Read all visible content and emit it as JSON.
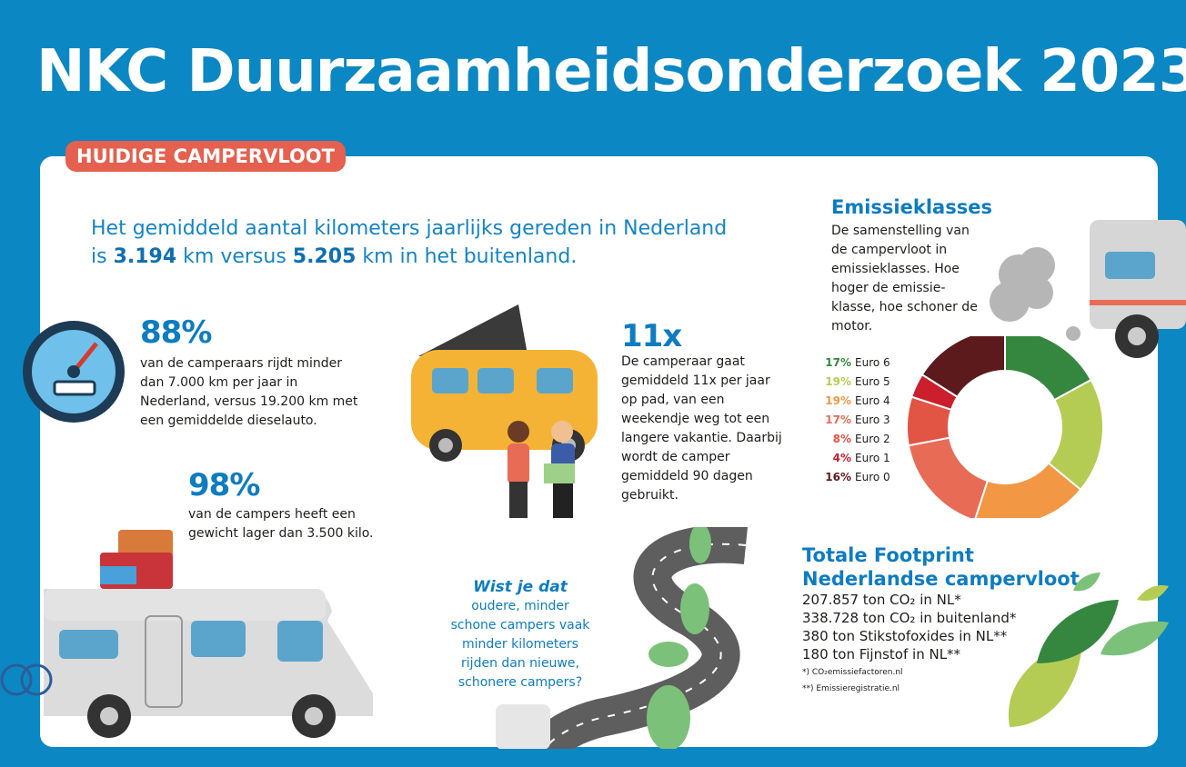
{
  "title": "NKC Duurzaamheidsonderzoek 2023",
  "section_tab": "HUIDIGE CAMPERVLOOT",
  "intro": {
    "part1": "Het gemiddeld aantal kilometers jaarlijks gereden in Nederland is ",
    "nl_km": "3.194",
    "part2": " km versus ",
    "abroad_km": "5.205",
    "part3": " km in het buitenland."
  },
  "stat1": {
    "value": "88%",
    "text": "van de camperaars rijdt minder dan 7.000 km per jaar in Nederland, versus 19.200 km met een gemiddelde dieselauto."
  },
  "stat2": {
    "value": "98%",
    "text": "van de campers heeft een gewicht lager dan 3.500 kilo."
  },
  "stat3": {
    "value": "11x",
    "text": "De camperaar gaat gemiddeld 11x per jaar op pad, van een weekendje weg tot een langere vakantie. Daarbij wordt de camper gemiddeld 90 dagen gebruikt."
  },
  "wist": {
    "heading": "Wist je dat",
    "text": "oudere, minder schone campers vaak minder kilometers rijden dan nieuwe, schonere campers?"
  },
  "emissions": {
    "title": "Emissieklasses",
    "description": "De samenstelling van de campervloot in emissieklasses. Hoe hoger de emissie-klasse, hoe schoner de motor."
  },
  "chart_data": {
    "type": "pie",
    "donut": true,
    "categories": [
      "Euro 6",
      "Euro 5",
      "Euro 4",
      "Euro 3",
      "Euro 2",
      "Euro 1",
      "Euro 0"
    ],
    "values": [
      17,
      19,
      19,
      17,
      8,
      4,
      16
    ],
    "labels": [
      "17%",
      "19%",
      "19%",
      "17%",
      "8%",
      "4%",
      "16%"
    ],
    "colors": [
      "#35873f",
      "#b5cc54",
      "#f29744",
      "#e86b56",
      "#e25444",
      "#cc1f2d",
      "#5c1a1d"
    ],
    "legend": "left"
  },
  "footprint": {
    "title1": "Totale Footprint",
    "title2": "Nederlandse campervloot",
    "lines": [
      "207.857 ton CO₂ in NL*",
      "338.728 ton CO₂ in buitenland*",
      "380 ton Stikstofoxides in NL**",
      "180 ton Fijnstof in NL**"
    ],
    "notes": [
      "*) CO₂emissiefactoren.nl",
      "**) Emissieregistratie.nl"
    ]
  }
}
